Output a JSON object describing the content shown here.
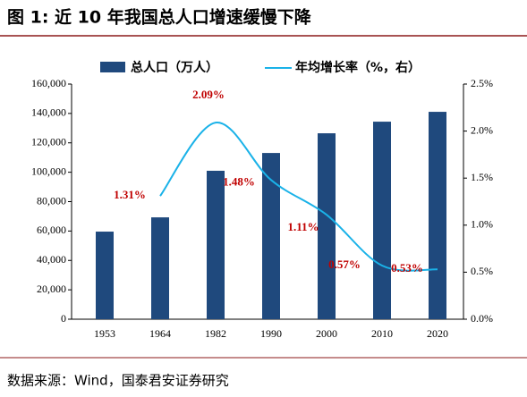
{
  "chart_data": {
    "type": "bar",
    "title": "图 1: 近 10 年我国总人口增速缓慢下降",
    "source": "数据来源：Wind，国泰君安证券研究",
    "categories": [
      "1953",
      "1964",
      "1982",
      "1990",
      "2000",
      "2010",
      "2020"
    ],
    "series": [
      {
        "name": "总人口（万人）",
        "type": "bar",
        "color": "#1f497d",
        "values": [
          59600,
          69300,
          101000,
          113100,
          126500,
          134400,
          141100
        ]
      },
      {
        "name": "年均增长率（%，右）",
        "type": "line",
        "axis": "y2",
        "color": "#1ab2e8",
        "values": [
          null,
          1.31,
          2.09,
          1.48,
          1.11,
          0.57,
          0.53
        ],
        "value_labels": [
          null,
          "1.31%",
          "2.09%",
          "1.48%",
          "1.11%",
          "0.57%",
          "0.53%"
        ]
      }
    ],
    "ylim": [
      0,
      160000
    ],
    "yticks": [
      0,
      {
        "value": 20000,
        "label": "20,000"
      },
      {
        "value": 40000,
        "label": "40,000"
      },
      {
        "value": 60000,
        "label": "60,000"
      },
      {
        "value": 80000,
        "label": "80,000"
      },
      {
        "value": 100000,
        "label": "100,000"
      },
      {
        "value": 120000,
        "label": "120,000"
      },
      {
        "value": 140000,
        "label": "140,000"
      },
      {
        "value": 160000,
        "label": "160,000"
      }
    ],
    "y2lim": [
      0,
      2.5
    ],
    "y2ticks": [
      {
        "value": 0,
        "label": "0.0%"
      },
      {
        "value": 0.5,
        "label": "0.5%"
      },
      {
        "value": 1,
        "label": "1.0%"
      },
      {
        "value": 1.5,
        "label": "1.5%"
      },
      {
        "value": 2,
        "label": "2.0%"
      },
      {
        "value": 2.5,
        "label": "2.5%"
      }
    ],
    "legend": "top"
  }
}
